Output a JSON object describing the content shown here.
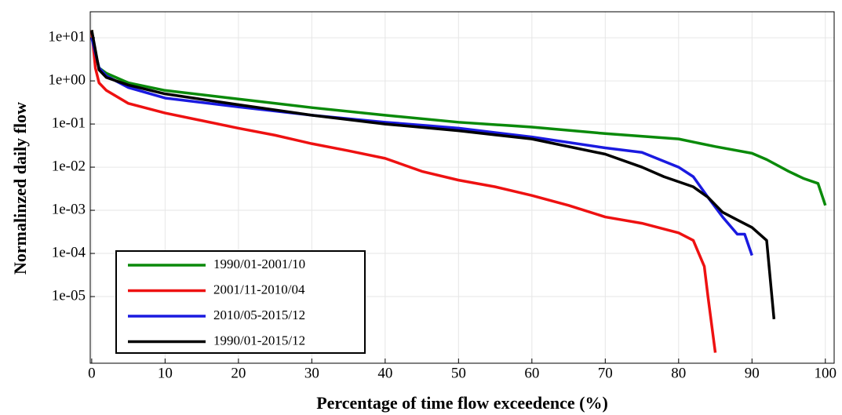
{
  "chart_data": {
    "type": "line",
    "xlabel": "Percentage of time flow exceedence (%)",
    "ylabel": "Normalinzed daily flow",
    "xlim": [
      -0.2,
      101.2
    ],
    "xticks": [
      0,
      10,
      20,
      30,
      40,
      50,
      60,
      70,
      80,
      90,
      100
    ],
    "ylim": [
      2.85e-07,
      40
    ],
    "yscale": "log",
    "yticks": [
      {
        "value": 10,
        "label": "1e+01"
      },
      {
        "value": 1,
        "label": "1e+00"
      },
      {
        "value": 0.1,
        "label": "1e-01"
      },
      {
        "value": 0.01,
        "label": "1e-02"
      },
      {
        "value": 0.001,
        "label": "1e-03"
      },
      {
        "value": 0.0001,
        "label": "1e-04"
      },
      {
        "value": 1e-05,
        "label": "1e-05"
      }
    ],
    "grid": true,
    "legend": "lower left",
    "series": [
      {
        "name": "1990/01-2001/10",
        "color": "#0a8a0a",
        "x": [
          0,
          0.5,
          1,
          2,
          5,
          10,
          20,
          30,
          40,
          50,
          60,
          70,
          80,
          85,
          90,
          92,
          95,
          97,
          99,
          100
        ],
        "values": [
          15,
          4,
          2,
          1.5,
          0.9,
          0.6,
          0.38,
          0.24,
          0.16,
          0.11,
          0.085,
          0.06,
          0.045,
          0.03,
          0.021,
          0.015,
          0.008,
          0.0055,
          0.0042,
          0.0013
        ]
      },
      {
        "name": "2001/11-2010/04",
        "color": "#ee1111",
        "x": [
          0,
          0.5,
          1,
          2,
          5,
          10,
          20,
          25,
          30,
          35,
          40,
          45,
          50,
          55,
          60,
          65,
          70,
          75,
          80,
          82,
          83.5,
          84,
          85
        ],
        "values": [
          15,
          2,
          0.9,
          0.6,
          0.3,
          0.18,
          0.08,
          0.055,
          0.035,
          0.024,
          0.016,
          0.008,
          0.005,
          0.0035,
          0.0022,
          0.0013,
          0.0007,
          0.0005,
          0.0003,
          0.0002,
          5e-05,
          1e-05,
          5e-07
        ]
      },
      {
        "name": "2010/05-2015/12",
        "color": "#1a1ae0",
        "x": [
          0,
          1,
          2,
          5,
          10,
          20,
          30,
          40,
          50,
          60,
          70,
          75,
          80,
          82,
          84,
          86,
          88,
          89,
          90
        ],
        "values": [
          10,
          2,
          1.3,
          0.7,
          0.4,
          0.25,
          0.16,
          0.11,
          0.08,
          0.05,
          0.028,
          0.022,
          0.01,
          0.006,
          0.002,
          0.0007,
          0.00028,
          0.00028,
          9e-05
        ]
      },
      {
        "name": "1990/01-2015/12",
        "color": "#000000",
        "x": [
          0,
          1,
          2,
          5,
          10,
          20,
          30,
          40,
          50,
          60,
          70,
          75,
          78,
          82,
          84,
          86,
          88,
          90,
          92,
          93
        ],
        "values": [
          15,
          1.8,
          1.2,
          0.8,
          0.5,
          0.28,
          0.16,
          0.1,
          0.07,
          0.045,
          0.02,
          0.01,
          0.006,
          0.0035,
          0.002,
          0.0009,
          0.0006,
          0.0004,
          0.0002,
          3e-06
        ]
      }
    ]
  }
}
